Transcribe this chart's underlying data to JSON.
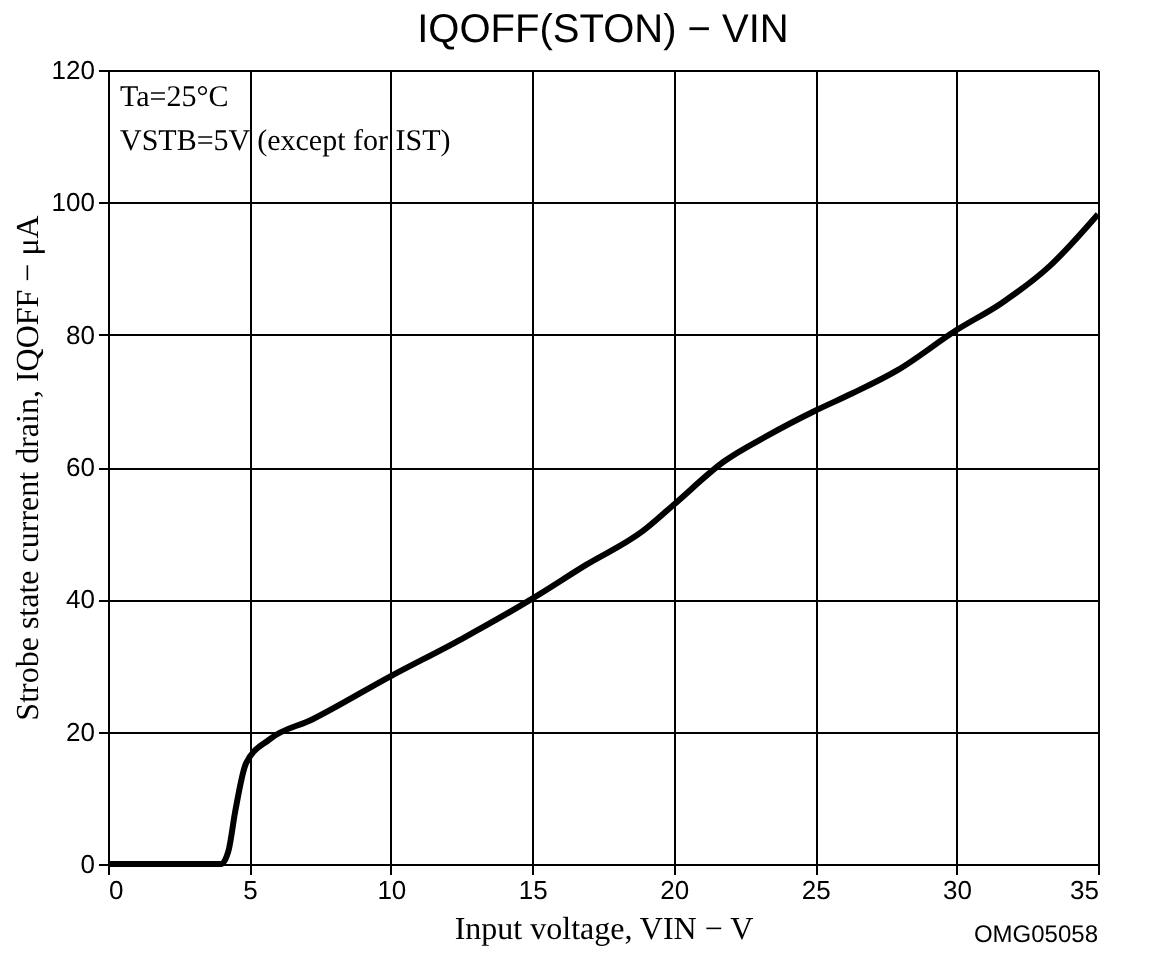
{
  "chart_data": {
    "type": "line",
    "title": "IQOFF(STON) − VIN",
    "xlabel": "Input voltage,  VIN − V",
    "ylabel": "Strobe state current drain,  IQOFF − μA",
    "x": [
      0,
      2,
      4,
      4.26,
      4.5,
      4.88,
      5.7,
      7.2,
      10,
      12.5,
      15,
      16.9,
      18.9,
      20,
      21.8,
      23.3,
      25,
      26.3,
      27.9,
      30,
      31.6,
      33.3,
      35
    ],
    "series": [
      {
        "color": "#000000",
        "values": [
          0,
          0,
          0,
          2,
          8,
          15.2,
          18.8,
          21.8,
          28.4,
          34,
          40.1,
          45.2,
          50.3,
          54.3,
          60.9,
          64.7,
          68.5,
          71.1,
          74.6,
          80.7,
          84.8,
          90.4,
          98.2
        ]
      }
    ],
    "xlim": [
      0,
      35
    ],
    "xticks": [
      0,
      5,
      10,
      15,
      20,
      25,
      30,
      35
    ],
    "ylim": [
      0,
      120
    ],
    "yticks": [
      0,
      20,
      40,
      60,
      80,
      100,
      120
    ],
    "grid": true,
    "marker": "none",
    "line_style": "solid",
    "annotations": [
      "Ta=25°C",
      "VSTB=5V (except for IST)",
      "OMG05058"
    ]
  }
}
